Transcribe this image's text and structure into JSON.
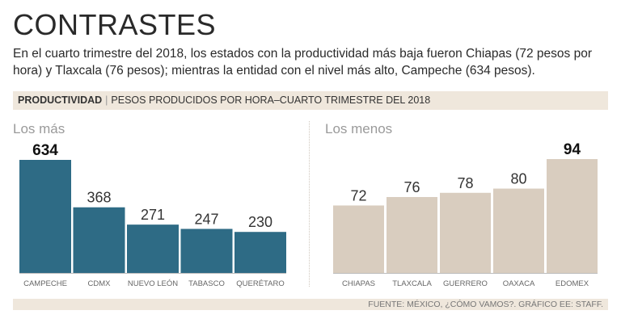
{
  "title": "CONTRASTES",
  "subtitle": "En el cuarto trimestre del 2018, los estados con la productividad más baja fueron Chiapas (72 pesos por hora) y Tlaxcala (76 pesos); mientras la entidad con el nivel más alto, Campeche (634 pesos).",
  "header": {
    "bold": "PRODUCTIVIDAD",
    "separator": "|",
    "text": "PESOS PRODUCIDOS POR HORA–CUARTO TRIMESTRE DEL 2018"
  },
  "footer": "FUENTE: MÉXICO, ¿CÓMO VAMOS?. GRÁFICO EE: STAFF.",
  "colors": {
    "high": "#2e6b85",
    "low": "#d9cdbf",
    "band": "#efe7dc"
  },
  "chart_data": [
    {
      "type": "bar",
      "title": "Los más",
      "categories": [
        "CAMPECHE",
        "CDMX",
        "NUEVO LEÓN",
        "TABASCO",
        "QUERÉTARO"
      ],
      "values": [
        634,
        368,
        271,
        247,
        230
      ],
      "value_labels": [
        "634",
        "368",
        "271",
        "247",
        "230"
      ],
      "highlight_index": 0,
      "color": "#2e6b85",
      "ylim": [
        0,
        634
      ]
    },
    {
      "type": "bar",
      "title": "Los menos",
      "categories": [
        "CHIAPAS",
        "TLAXCALA",
        "GUERRERO",
        "OAXACA",
        "EDOMEX"
      ],
      "values": [
        72,
        76,
        78,
        80,
        94
      ],
      "value_labels": [
        "72",
        "76",
        "78",
        "80",
        "94"
      ],
      "highlight_index": 4,
      "color": "#d9cdbf",
      "ylim": [
        40,
        94
      ]
    }
  ]
}
